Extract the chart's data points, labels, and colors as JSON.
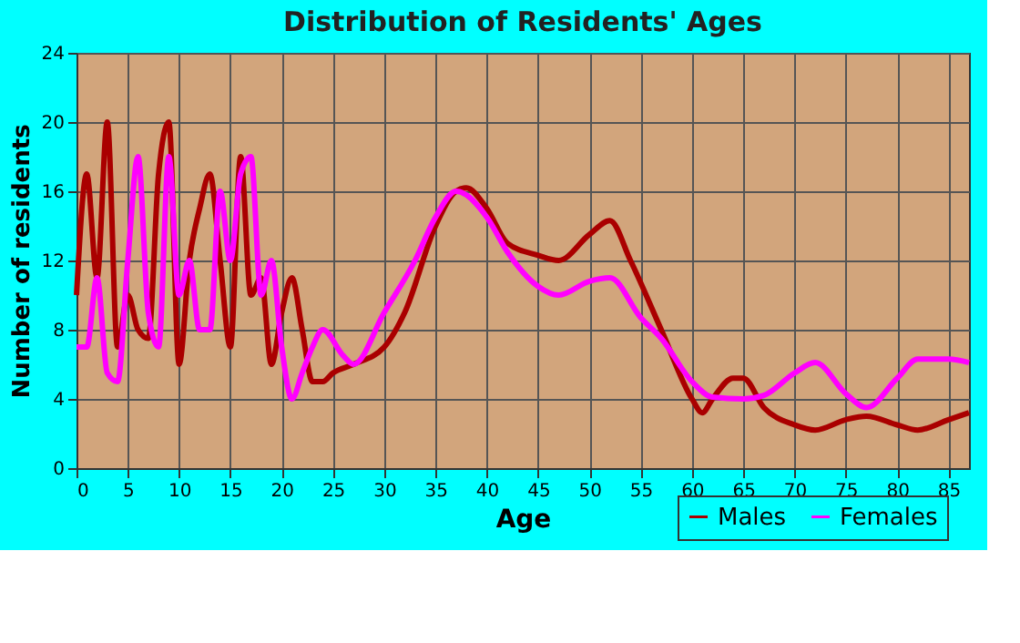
{
  "chart_data": {
    "type": "line",
    "title": "Distribution of Residents' Ages",
    "xlabel": "Age",
    "ylabel": "Number of residents",
    "xlim": [
      0,
      87
    ],
    "xticks": [
      0,
      5,
      10,
      15,
      20,
      25,
      30,
      35,
      40,
      45,
      50,
      55,
      60,
      65,
      70,
      75,
      80,
      85
    ],
    "ylim": [
      0,
      24
    ],
    "yticks": [
      0,
      4,
      8,
      12,
      16,
      20,
      24
    ],
    "grid": true,
    "legend": "bottom right",
    "line_style": "solid",
    "marker": "none",
    "series": [
      {
        "name": "Males",
        "color": "#aa0000",
        "x": [
          0,
          1,
          2,
          3,
          4,
          5,
          6,
          7,
          8,
          9,
          10,
          11,
          12,
          13,
          14,
          15,
          16,
          17,
          18,
          19,
          20,
          21,
          22,
          23,
          24,
          25,
          27,
          30,
          32,
          35,
          37,
          38,
          40,
          42,
          45,
          47,
          50,
          52,
          54,
          57,
          60,
          61,
          62,
          64,
          65,
          67,
          70,
          72,
          75,
          77,
          80,
          82,
          85,
          87
        ],
        "values": [
          10,
          17,
          11,
          20,
          7,
          10,
          8,
          7.5,
          17,
          20,
          6,
          12,
          15,
          17,
          12,
          7,
          18,
          10,
          11,
          6,
          9,
          11,
          8,
          5,
          5,
          5.5,
          6,
          7,
          9,
          14,
          16,
          16.2,
          15,
          13,
          12.3,
          12,
          13.5,
          14.3,
          12,
          8,
          4,
          3.2,
          4,
          5.2,
          5.2,
          3.5,
          2.5,
          2.2,
          2.8,
          3,
          2.5,
          2.2,
          2.8,
          3.2
        ]
      },
      {
        "name": "Females",
        "color": "#ff00ff",
        "x": [
          0,
          1,
          2,
          3,
          4,
          5,
          6,
          7,
          8,
          9,
          10,
          11,
          12,
          13,
          14,
          15,
          16,
          17,
          18,
          19,
          20,
          21,
          22,
          23,
          24,
          26,
          27,
          30,
          33,
          35,
          37,
          40,
          42,
          45,
          47,
          50,
          52,
          55,
          57,
          60,
          62,
          65,
          67,
          70,
          72,
          75,
          77,
          80,
          82,
          85,
          87
        ],
        "values": [
          7,
          7,
          11,
          5.5,
          5,
          12,
          18,
          9,
          7,
          18,
          10,
          12,
          8,
          8,
          16,
          12,
          17,
          18,
          10,
          12,
          7,
          4,
          5.5,
          7,
          8,
          6.5,
          6,
          9,
          12,
          14.5,
          16,
          14.5,
          12.5,
          10.5,
          10,
          10.8,
          11,
          8.7,
          7.5,
          5,
          4.1,
          4,
          4.2,
          5.5,
          6.1,
          4.3,
          3.5,
          5.2,
          6.3,
          6.3,
          6.1
        ]
      }
    ]
  }
}
